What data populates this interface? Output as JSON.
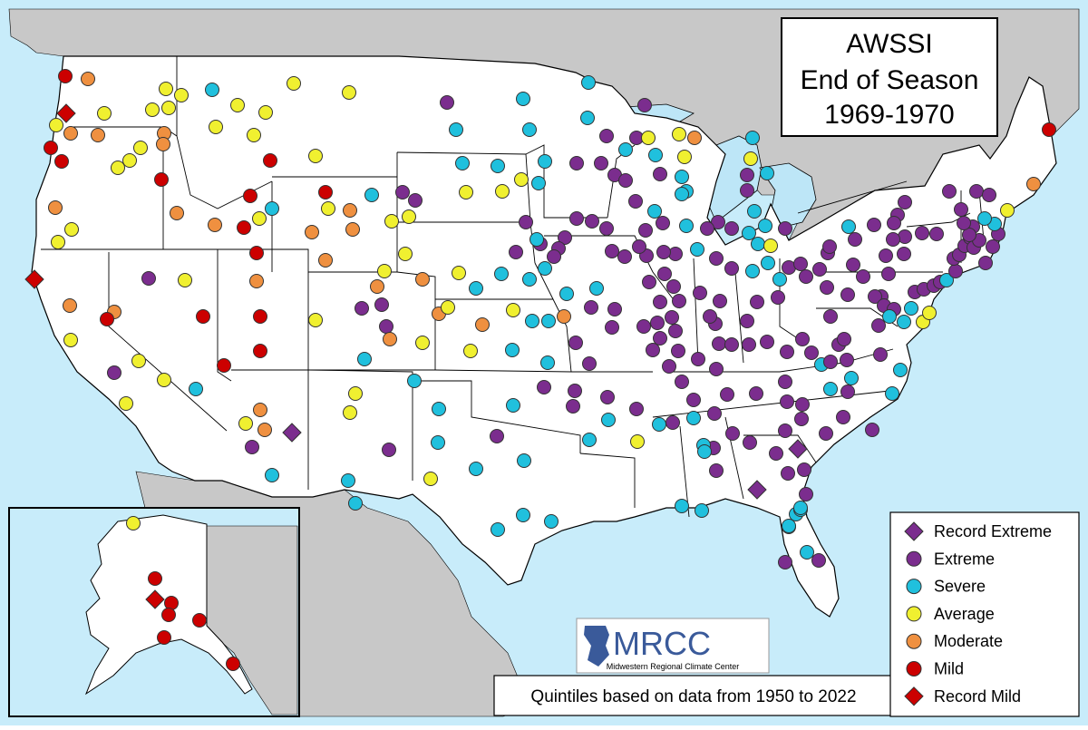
{
  "title": {
    "line1": "AWSSI",
    "line2": "End of Season",
    "line3": "1969-1970"
  },
  "footnote": "Quintiles based on data from 1950 to 2022",
  "logo": {
    "text": "MRCC",
    "subtitle": "Midwestern Regional Climate Center"
  },
  "legend": [
    {
      "key": "record_extreme",
      "label": "Record Extreme",
      "shape": "diamond",
      "color": "#7b2d8e"
    },
    {
      "key": "extreme",
      "label": "Extreme",
      "shape": "circle",
      "color": "#7b2d8e"
    },
    {
      "key": "severe",
      "label": "Severe",
      "shape": "circle",
      "color": "#20c0dd"
    },
    {
      "key": "average",
      "label": "Average",
      "shape": "circle",
      "color": "#f0f030"
    },
    {
      "key": "moderate",
      "label": "Moderate",
      "shape": "circle",
      "color": "#ef9040"
    },
    {
      "key": "mild",
      "label": "Mild",
      "shape": "circle",
      "color": "#cc0000"
    },
    {
      "key": "record_mild",
      "label": "Record Mild",
      "shape": "diamond",
      "color": "#cc0000"
    }
  ],
  "colors": {
    "ocean": "#c8ecfa",
    "neighbor_land": "#c8c8c8",
    "us_land": "#ffffff",
    "lakes": "#bde6f7"
  }
}
